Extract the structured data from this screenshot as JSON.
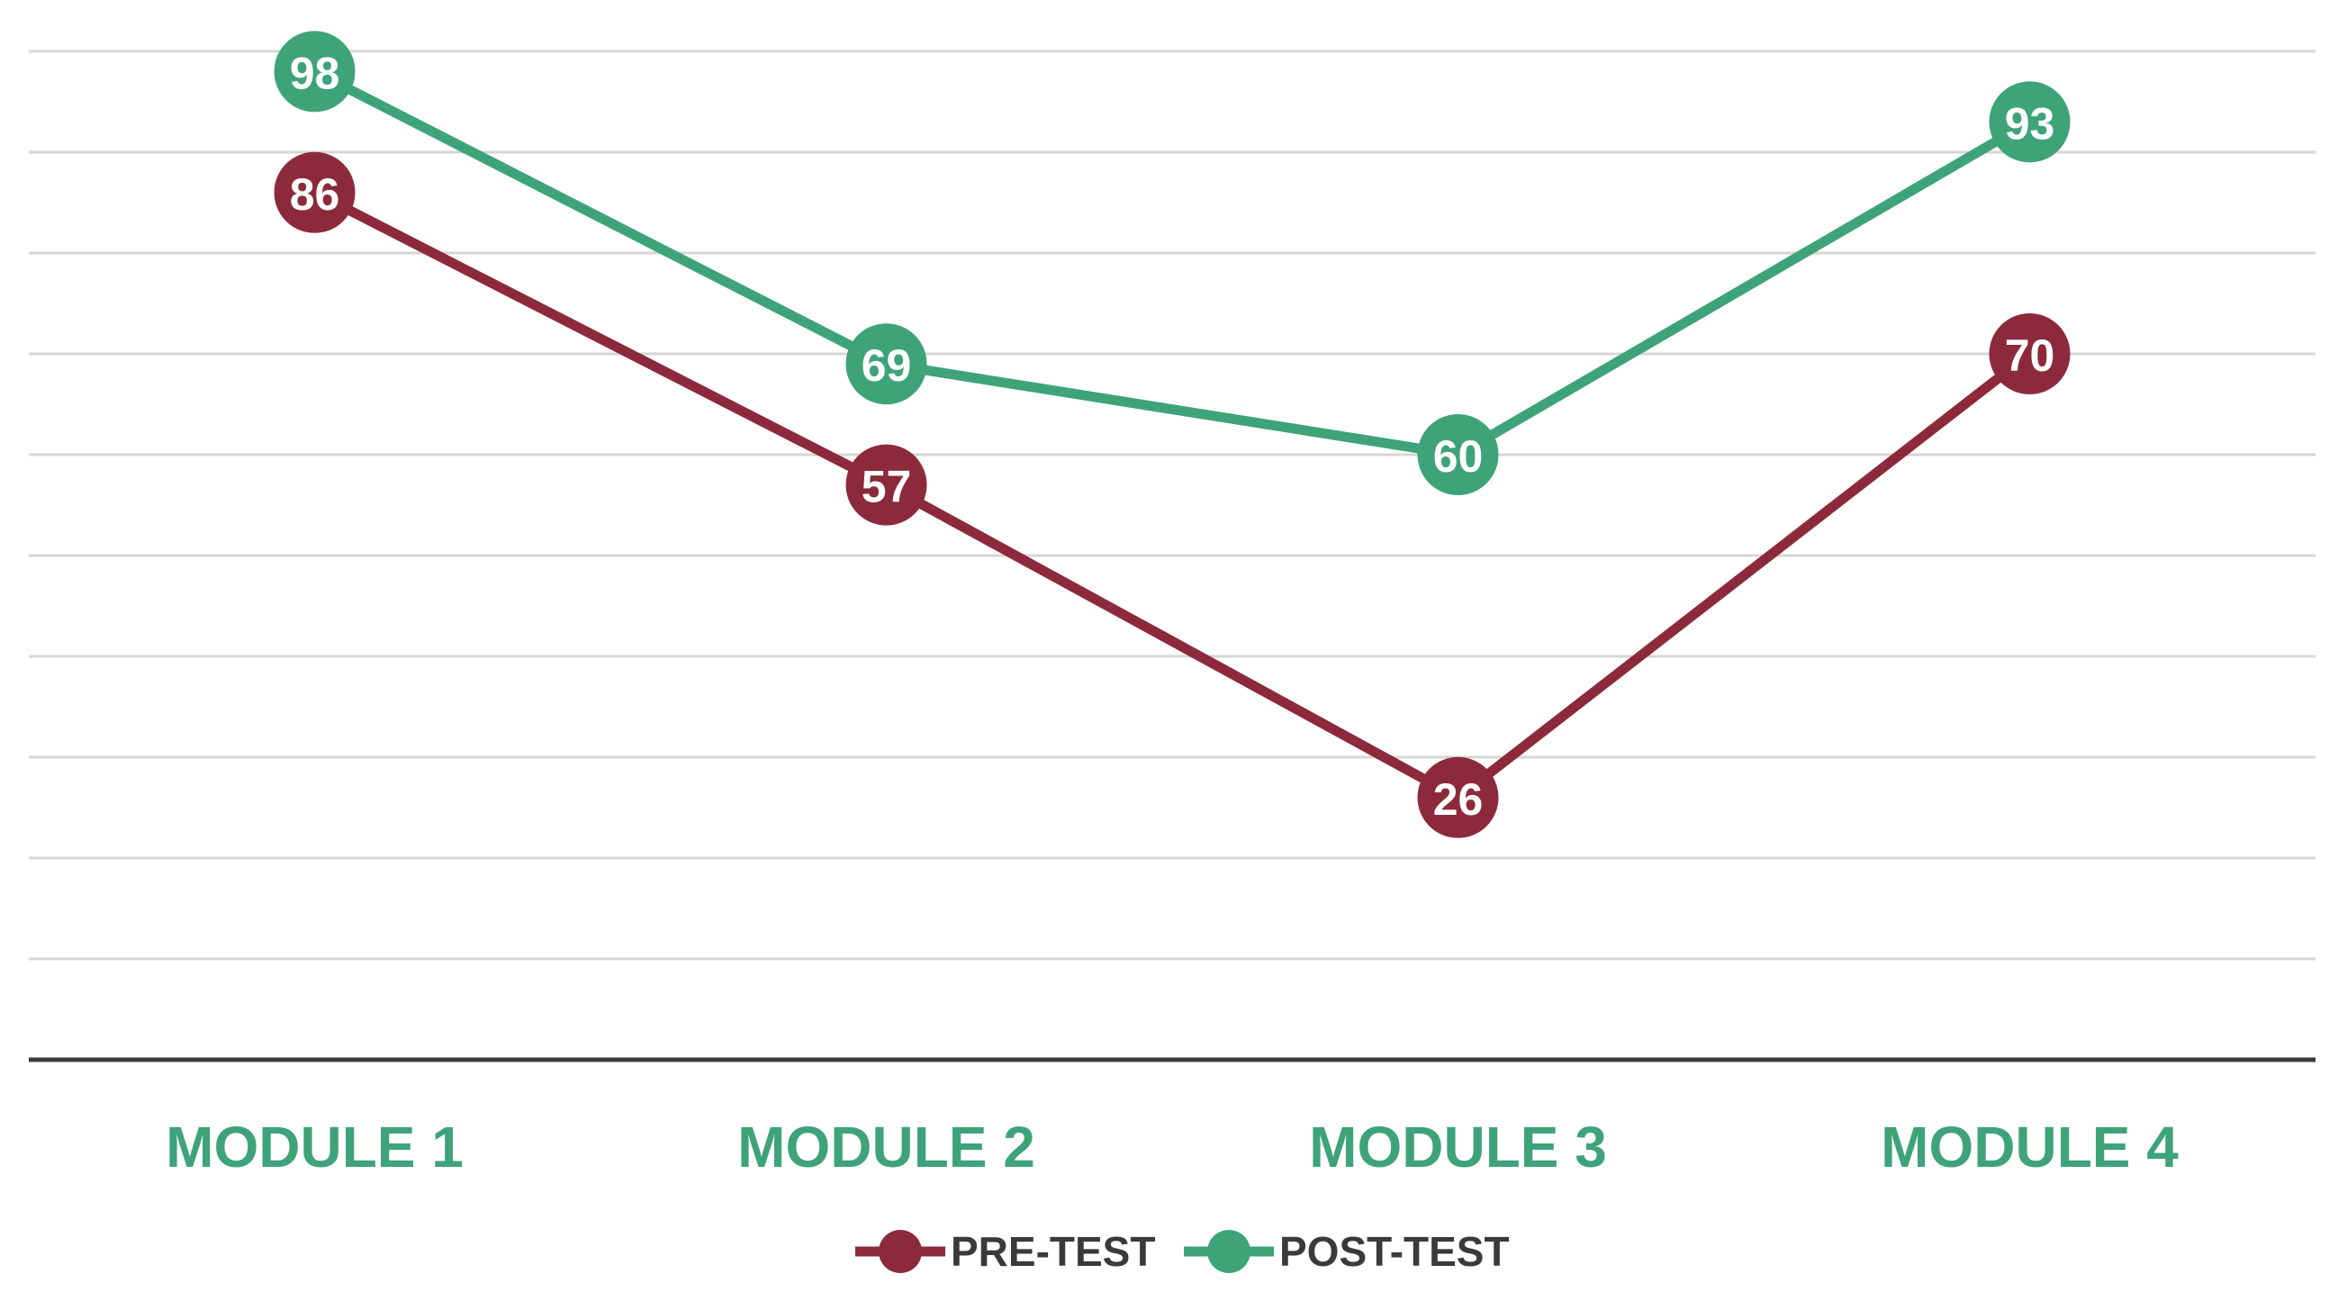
{
  "chart_data": {
    "type": "line",
    "categories": [
      "MODULE 1",
      "MODULE 2",
      "MODULE 3",
      "MODULE 4"
    ],
    "series": [
      {
        "name": "PRE-TEST",
        "color": "#8c2a3c",
        "values": [
          86,
          57,
          26,
          70
        ]
      },
      {
        "name": "POST-TEST",
        "color": "#3fa37a",
        "values": [
          98,
          69,
          60,
          93
        ]
      }
    ],
    "ylim": [
      0,
      100
    ],
    "yticks": [
      0,
      10,
      20,
      30,
      40,
      50,
      60,
      70,
      80,
      90,
      100
    ],
    "grid": true,
    "legend": "bottom"
  }
}
